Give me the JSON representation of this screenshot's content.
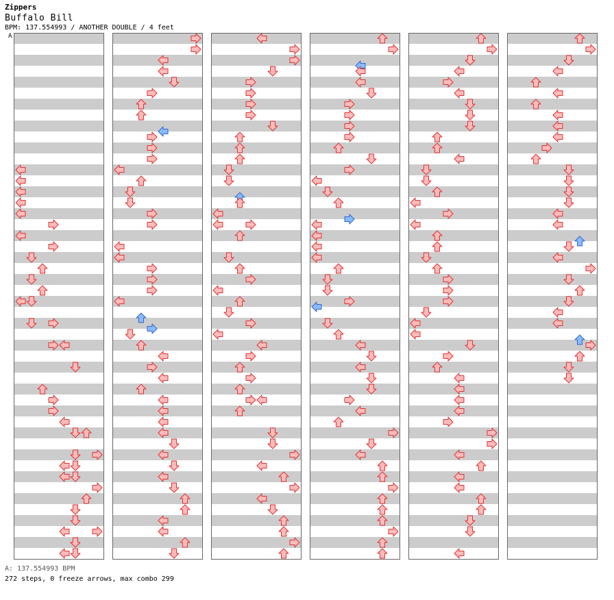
{
  "header": {
    "artist": "Zippers",
    "title": "Buffalo Bill",
    "meta": "BPM: 137.554993 / ANOTHER DOUBLE / 4 feet",
    "bpm_marker": "A"
  },
  "footer": {
    "bpm_line": "A: 137.554993 BPM",
    "stats_line": "272 steps, 0 freeze arrows, max combo 299"
  },
  "colors": {
    "stripe": "#cccccc",
    "border": "#666666",
    "note_fill": "#ffbbbb",
    "note_stroke": "#dd3333",
    "offbeat_fill": "#88bbff",
    "offbeat_stroke": "#3366cc"
  },
  "lanes": [
    "left",
    "down",
    "up",
    "right",
    "left",
    "down",
    "up",
    "right"
  ],
  "columns": [
    {
      "measures": [
        [],
        [],
        [],
        [
          [
            0,
            0
          ],
          [
            0,
            1
          ],
          [
            0,
            2
          ],
          [
            0,
            3
          ]
        ],
        [
          [
            0,
            0
          ],
          [
            3,
            1
          ],
          [
            0,
            2
          ],
          [
            3,
            3
          ]
        ],
        [
          [
            1,
            0
          ],
          [
            2,
            1
          ],
          [
            1,
            2
          ],
          [
            2,
            3
          ]
        ],
        [
          [
            0,
            0
          ],
          [
            1,
            0
          ],
          [
            1,
            2
          ],
          [
            3,
            2
          ]
        ],
        [
          [
            3,
            0
          ],
          [
            4,
            0
          ],
          [
            5,
            2
          ]
        ],
        [
          [
            2,
            0
          ],
          [
            3,
            1
          ],
          [
            3,
            2
          ],
          [
            4,
            3
          ]
        ],
        [
          [
            5,
            0
          ],
          [
            6,
            0
          ],
          [
            5,
            2
          ],
          [
            7,
            2
          ],
          [
            4,
            3
          ],
          [
            5,
            3
          ]
        ],
        [
          [
            4,
            0
          ],
          [
            5,
            0
          ],
          [
            7,
            1
          ],
          [
            6,
            2
          ],
          [
            5,
            3
          ]
        ],
        [
          [
            5,
            0
          ],
          [
            4,
            1
          ],
          [
            7,
            1
          ],
          [
            5,
            2
          ],
          [
            4,
            3
          ],
          [
            5,
            3
          ]
        ]
      ]
    },
    {
      "measures": [
        [
          [
            7,
            0
          ],
          [
            7,
            1
          ],
          [
            4,
            2
          ],
          [
            4,
            3
          ]
        ],
        [
          [
            5,
            0
          ],
          [
            3,
            1
          ],
          [
            2,
            2
          ],
          [
            2,
            3
          ]
        ],
        [
          [
            4,
            0
          ],
          [
            3,
            1
          ],
          [
            3,
            2
          ],
          [
            3,
            3
          ]
        ],
        [
          [
            0,
            0
          ],
          [
            2,
            1
          ],
          [
            1,
            2
          ],
          [
            1,
            3
          ]
        ],
        [
          [
            3,
            0
          ],
          [
            3,
            1
          ],
          [
            0,
            3
          ]
        ],
        [
          [
            0,
            0
          ],
          [
            3,
            1
          ],
          [
            3,
            2
          ],
          [
            3,
            3
          ]
        ],
        [
          [
            0,
            0
          ],
          [
            2,
            1
          ],
          [
            3,
            2
          ],
          [
            1,
            3
          ]
        ],
        [
          [
            2,
            0
          ],
          [
            4,
            1
          ],
          [
            3,
            2
          ],
          [
            4,
            3
          ]
        ],
        [
          [
            2,
            0
          ],
          [
            4,
            1
          ],
          [
            4,
            2
          ],
          [
            4,
            3
          ]
        ],
        [
          [
            4,
            0
          ],
          [
            5,
            1
          ],
          [
            4,
            2
          ],
          [
            5,
            3
          ]
        ],
        [
          [
            4,
            0
          ],
          [
            5,
            1
          ],
          [
            6,
            2
          ],
          [
            6,
            3
          ]
        ],
        [
          [
            4,
            0
          ],
          [
            4,
            1
          ],
          [
            6,
            2
          ],
          [
            5,
            3
          ]
        ]
      ]
    },
    {
      "measures": [
        [
          [
            4,
            0
          ],
          [
            7,
            1
          ],
          [
            7,
            2
          ],
          [
            5,
            3
          ]
        ],
        [
          [
            3,
            0
          ],
          [
            3,
            1
          ],
          [
            3,
            2
          ],
          [
            3,
            3
          ]
        ],
        [
          [
            5,
            0
          ],
          [
            2,
            1
          ],
          [
            2,
            2
          ],
          [
            2,
            3
          ]
        ],
        [
          [
            1,
            0
          ],
          [
            1,
            1
          ],
          [
            2,
            2
          ],
          [
            2,
            3
          ]
        ],
        [
          [
            0,
            0
          ],
          [
            0,
            1
          ],
          [
            3,
            1
          ],
          [
            2,
            2
          ]
        ],
        [
          [
            1,
            0
          ],
          [
            2,
            1
          ],
          [
            3,
            2
          ],
          [
            0,
            3
          ]
        ],
        [
          [
            2,
            0
          ],
          [
            1,
            1
          ],
          [
            3,
            2
          ],
          [
            0,
            3
          ]
        ],
        [
          [
            4,
            0
          ],
          [
            3,
            1
          ],
          [
            2,
            2
          ],
          [
            3,
            3
          ]
        ],
        [
          [
            2,
            0
          ],
          [
            3,
            1
          ],
          [
            4,
            1
          ],
          [
            2,
            2
          ]
        ],
        [
          [
            5,
            0
          ],
          [
            5,
            1
          ],
          [
            7,
            2
          ],
          [
            4,
            3
          ]
        ],
        [
          [
            6,
            0
          ],
          [
            7,
            1
          ],
          [
            4,
            2
          ],
          [
            5,
            3
          ]
        ],
        [
          [
            6,
            0
          ],
          [
            6,
            1
          ],
          [
            7,
            2
          ],
          [
            6,
            3
          ]
        ]
      ]
    },
    {
      "measures": [
        [
          [
            6,
            0
          ],
          [
            7,
            1
          ],
          [
            4,
            2
          ],
          [
            4,
            3
          ]
        ],
        [
          [
            4,
            0
          ],
          [
            5,
            1
          ],
          [
            3,
            2
          ],
          [
            3,
            3
          ]
        ],
        [
          [
            3,
            0
          ],
          [
            3,
            1
          ],
          [
            2,
            2
          ],
          [
            5,
            3
          ]
        ],
        [
          [
            3,
            0
          ],
          [
            0,
            1
          ],
          [
            1,
            2
          ],
          [
            2,
            3
          ]
        ],
        [
          [
            3,
            0
          ],
          [
            0,
            1
          ],
          [
            0,
            2
          ],
          [
            0,
            3
          ]
        ],
        [
          [
            0,
            0
          ],
          [
            2,
            1
          ],
          [
            1,
            2
          ],
          [
            1,
            3
          ]
        ],
        [
          [
            0,
            0
          ],
          [
            3,
            0
          ],
          [
            1,
            2
          ],
          [
            2,
            3
          ]
        ],
        [
          [
            4,
            0
          ],
          [
            5,
            1
          ],
          [
            4,
            2
          ],
          [
            5,
            3
          ]
        ],
        [
          [
            5,
            0
          ],
          [
            3,
            1
          ],
          [
            4,
            2
          ],
          [
            2,
            3
          ]
        ],
        [
          [
            7,
            0
          ],
          [
            5,
            1
          ],
          [
            4,
            2
          ],
          [
            6,
            3
          ]
        ],
        [
          [
            6,
            0
          ],
          [
            7,
            1
          ],
          [
            6,
            2
          ],
          [
            6,
            3
          ]
        ],
        [
          [
            6,
            0
          ],
          [
            7,
            1
          ],
          [
            6,
            2
          ],
          [
            6,
            3
          ]
        ]
      ]
    },
    {
      "measures": [
        [
          [
            6,
            0
          ],
          [
            7,
            1
          ],
          [
            5,
            2
          ],
          [
            4,
            3
          ]
        ],
        [
          [
            3,
            0
          ],
          [
            4,
            1
          ],
          [
            5,
            2
          ],
          [
            5,
            3
          ]
        ],
        [
          [
            5,
            0
          ],
          [
            2,
            1
          ],
          [
            2,
            2
          ],
          [
            4,
            3
          ]
        ],
        [
          [
            1,
            0
          ],
          [
            1,
            1
          ],
          [
            2,
            2
          ],
          [
            0,
            3
          ]
        ],
        [
          [
            3,
            0
          ],
          [
            0,
            1
          ],
          [
            2,
            2
          ],
          [
            2,
            3
          ]
        ],
        [
          [
            1,
            0
          ],
          [
            2,
            1
          ],
          [
            3,
            2
          ],
          [
            3,
            3
          ]
        ],
        [
          [
            3,
            0
          ],
          [
            1,
            1
          ],
          [
            0,
            2
          ],
          [
            0,
            3
          ]
        ],
        [
          [
            5,
            0
          ],
          [
            3,
            1
          ],
          [
            2,
            2
          ],
          [
            4,
            3
          ]
        ],
        [
          [
            4,
            0
          ],
          [
            4,
            1
          ],
          [
            4,
            2
          ],
          [
            3,
            3
          ]
        ],
        [
          [
            7,
            0
          ],
          [
            7,
            1
          ],
          [
            4,
            2
          ],
          [
            6,
            3
          ]
        ],
        [
          [
            4,
            0
          ],
          [
            4,
            1
          ],
          [
            6,
            2
          ],
          [
            6,
            3
          ]
        ],
        [
          [
            5,
            0
          ],
          [
            5,
            1
          ],
          [
            4,
            3
          ]
        ]
      ]
    },
    {
      "measures": [
        [
          [
            6,
            0
          ],
          [
            7,
            1
          ],
          [
            5,
            2
          ],
          [
            4,
            3
          ]
        ],
        [
          [
            2,
            0
          ],
          [
            4,
            1
          ],
          [
            2,
            2
          ],
          [
            4,
            3
          ]
        ],
        [
          [
            4,
            0
          ],
          [
            4,
            1
          ],
          [
            3,
            2
          ],
          [
            2,
            3
          ]
        ],
        [
          [
            5,
            0
          ],
          [
            5,
            1
          ],
          [
            5,
            2
          ],
          [
            5,
            3
          ]
        ],
        [
          [
            4,
            0
          ],
          [
            4,
            1
          ],
          [
            6,
            2
          ],
          [
            5,
            3
          ]
        ],
        [
          [
            4,
            0
          ],
          [
            7,
            1
          ],
          [
            5,
            2
          ],
          [
            6,
            3
          ]
        ],
        [
          [
            5,
            0
          ],
          [
            4,
            1
          ],
          [
            4,
            2
          ],
          [
            6,
            3
          ]
        ],
        [
          [
            7,
            0
          ],
          [
            6,
            1
          ],
          [
            5,
            2
          ],
          [
            5,
            3
          ]
        ],
        [],
        [],
        [],
        []
      ]
    }
  ],
  "offbeat_notes": [
    [
      1,
      1,
      1,
      1
    ],
    [
      1,
      2,
      4,
      0
    ],
    [
      1,
      6,
      2,
      1
    ],
    [
      1,
      6,
      3,
      2
    ],
    [
      1,
      10,
      4,
      3
    ],
    [
      2,
      2,
      5,
      1
    ],
    [
      2,
      3,
      2,
      2
    ],
    [
      2,
      6,
      2,
      1
    ],
    [
      3,
      0,
      4,
      2
    ],
    [
      3,
      2,
      2,
      3
    ],
    [
      3,
      3,
      1,
      1
    ],
    [
      3,
      4,
      3,
      0
    ],
    [
      3,
      5,
      0,
      3
    ],
    [
      3,
      6,
      0,
      0
    ],
    [
      5,
      4,
      6,
      2
    ],
    [
      5,
      5,
      4,
      3
    ],
    [
      5,
      6,
      6,
      3
    ],
    [
      5,
      7,
      4,
      0
    ]
  ]
}
